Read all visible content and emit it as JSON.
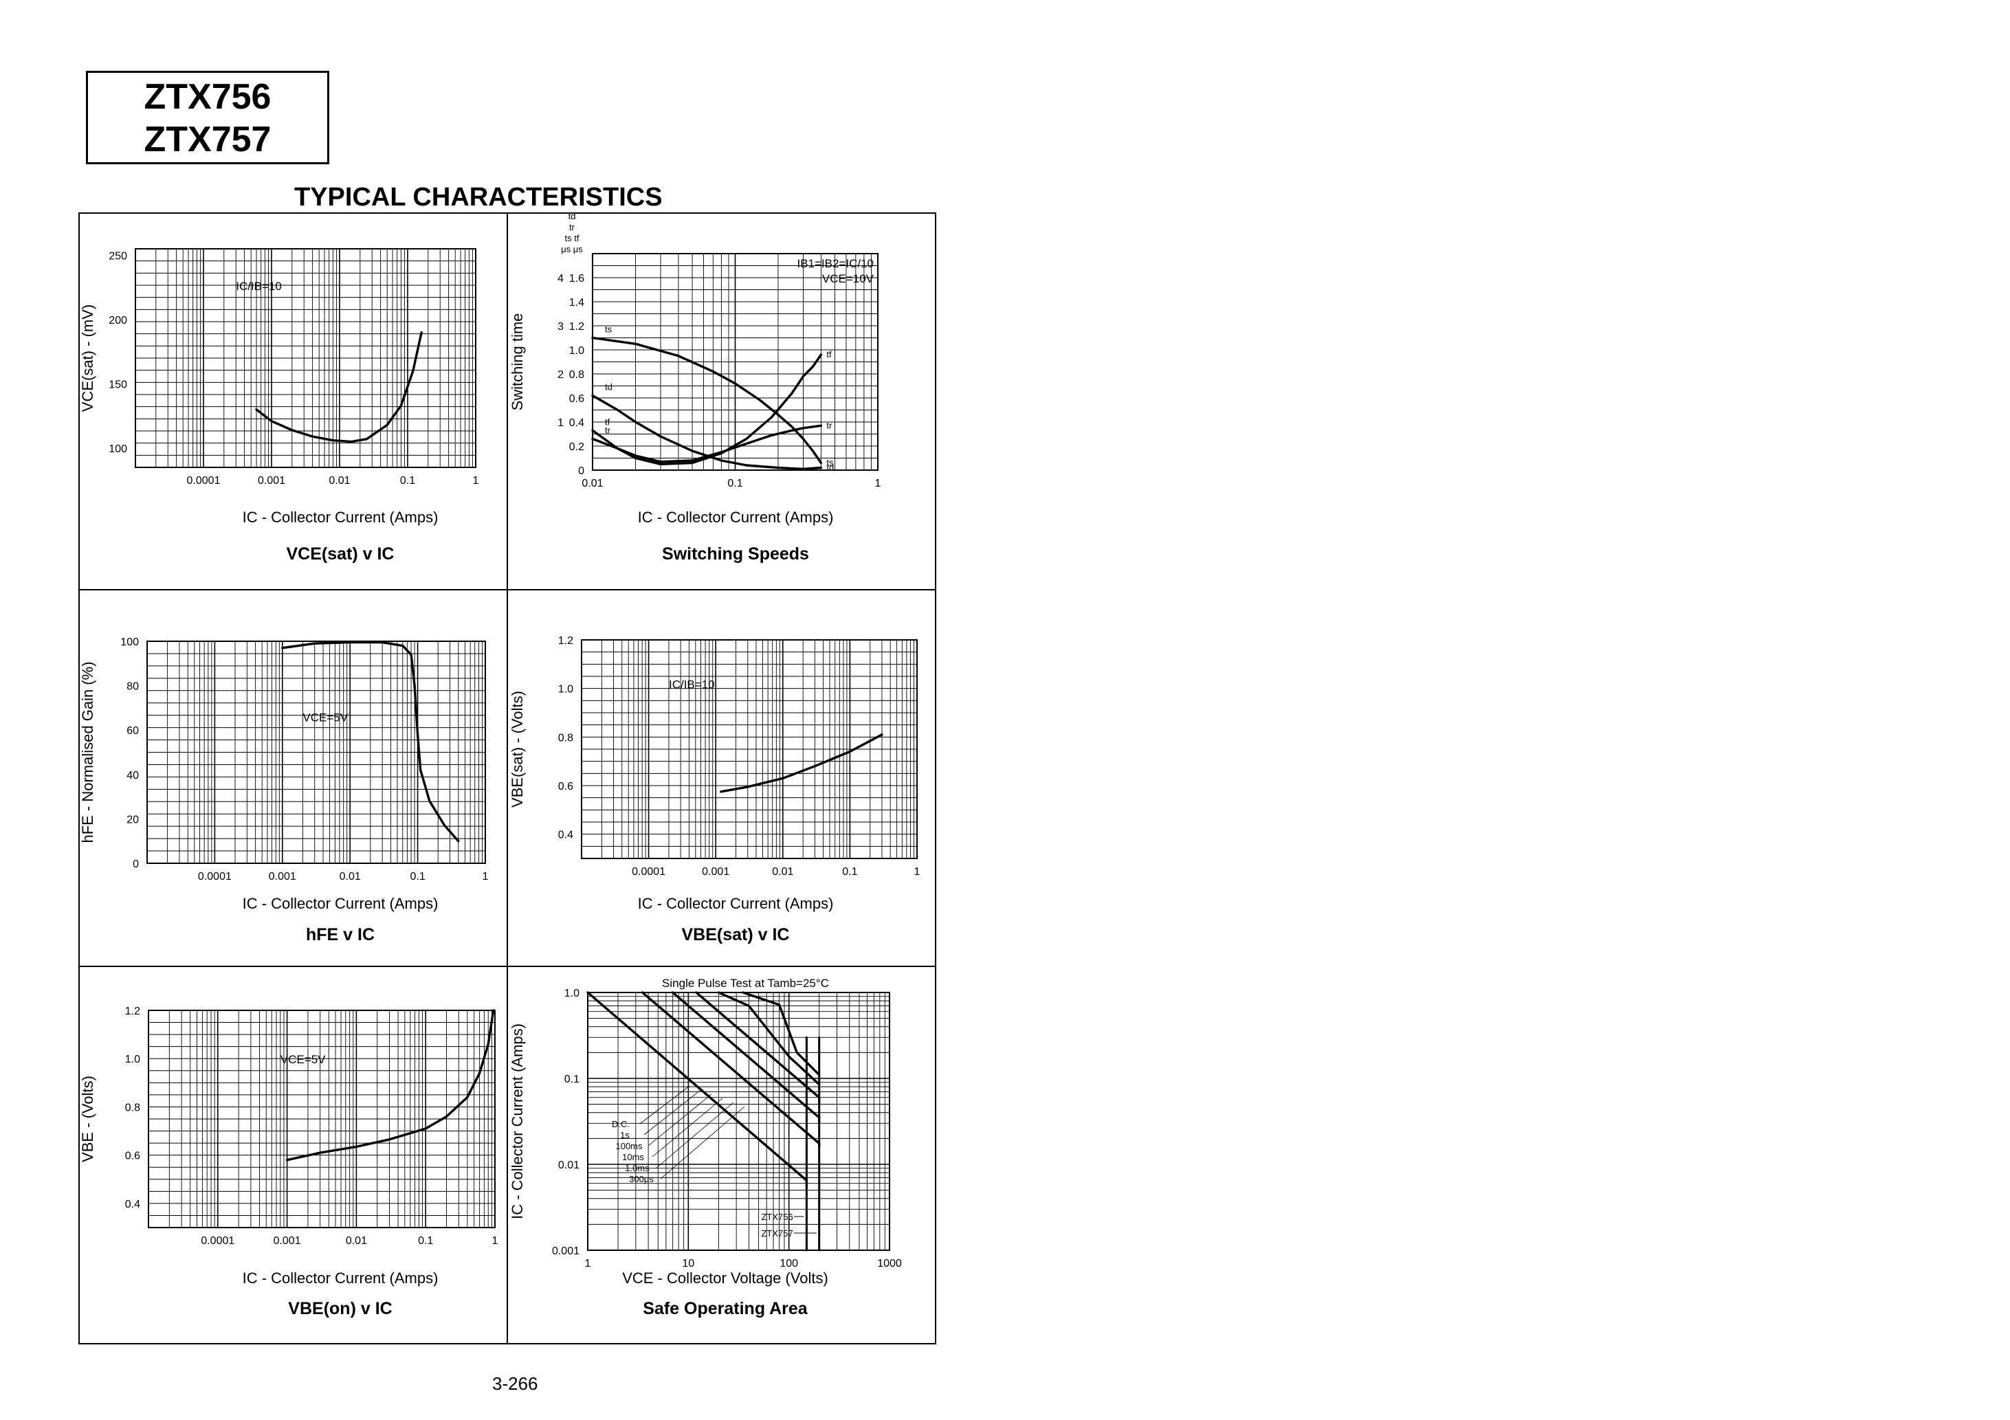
{
  "header": {
    "part_numbers": [
      "ZTX756",
      "ZTX757"
    ],
    "section_title": "TYPICAL CHARACTERISTICS"
  },
  "footer": {
    "page_number": "3-266"
  },
  "chart_data": [
    {
      "id": "vcesat",
      "type": "line",
      "caption": "VCE(sat) v IC",
      "xlabel": "IC - Collector Current (Amps)",
      "ylabel": "VCE(sat) - (mV)",
      "xscale": "log",
      "xlim": [
        1e-05,
        1
      ],
      "ylim": [
        85,
        255
      ],
      "x_ticks": [
        "0.0001",
        "0.001",
        "0.01",
        "0.1",
        "1"
      ],
      "x_tick_values": [
        0.0001,
        0.001,
        0.01,
        0.1,
        1
      ],
      "y_ticks": [
        "100",
        "150",
        "200",
        "250"
      ],
      "y_tick_values": [
        100,
        150,
        200,
        250
      ],
      "annotations": [
        {
          "text": "IC/IB=10",
          "x": 0.0003,
          "y": 223
        }
      ],
      "series": [
        {
          "x": [
            0.0006,
            0.001,
            0.002,
            0.004,
            0.008,
            0.015,
            0.025,
            0.05,
            0.08,
            0.12,
            0.16
          ],
          "y": [
            130,
            121,
            114,
            109,
            106,
            105,
            107,
            118,
            133,
            160,
            190
          ]
        }
      ]
    },
    {
      "id": "switching",
      "type": "line",
      "caption": "Switching Speeds",
      "xlabel": "IC - Collector Current (Amps)",
      "ylabel": "Switching time",
      "xscale": "log",
      "xlim": [
        0.01,
        1
      ],
      "ylim": [
        0,
        1.8
      ],
      "x_ticks": [
        "0.01",
        "0.1",
        "1"
      ],
      "x_tick_values": [
        0.01,
        0.1,
        1
      ],
      "y_ticks": [
        "0",
        "0.2",
        "0.4",
        "0.6",
        "0.8",
        "1.0",
        "1.2",
        "1.4",
        "1.6"
      ],
      "y_tick_values": [
        0,
        0.2,
        0.4,
        0.6,
        0.8,
        1.0,
        1.2,
        1.4,
        1.6
      ],
      "y2_ticks": [
        "1",
        "2",
        "3",
        "4"
      ],
      "y2_tick_values": [
        0.4,
        0.8,
        1.2,
        1.6
      ],
      "y_unit_header": [
        "td",
        "tr",
        "ts  tf",
        "μs  μs"
      ],
      "legend": [
        "IB1=IB2=IC/10",
        "VCE=10V"
      ],
      "series": [
        {
          "name": "ts",
          "x": [
            0.01,
            0.02,
            0.04,
            0.07,
            0.1,
            0.15,
            0.2,
            0.25,
            0.3,
            0.35,
            0.4
          ],
          "y": [
            1.1,
            1.05,
            0.95,
            0.82,
            0.72,
            0.58,
            0.46,
            0.36,
            0.26,
            0.16,
            0.06
          ]
        },
        {
          "name": "td",
          "x": [
            0.01,
            0.015,
            0.02,
            0.03,
            0.05,
            0.08,
            0.12,
            0.2,
            0.3,
            0.4
          ],
          "y": [
            0.62,
            0.5,
            0.4,
            0.28,
            0.16,
            0.08,
            0.04,
            0.02,
            0.01,
            0.02
          ]
        },
        {
          "name": "tf",
          "x": [
            0.01,
            0.015,
            0.02,
            0.03,
            0.05,
            0.08,
            0.12,
            0.18,
            0.25,
            0.3,
            0.35,
            0.4
          ],
          "y": [
            0.33,
            0.18,
            0.1,
            0.05,
            0.06,
            0.14,
            0.26,
            0.44,
            0.64,
            0.78,
            0.86,
            0.96
          ]
        },
        {
          "name": "tr",
          "x": [
            0.01,
            0.015,
            0.02,
            0.03,
            0.05,
            0.08,
            0.12,
            0.18,
            0.25,
            0.3,
            0.4
          ],
          "y": [
            0.26,
            0.18,
            0.12,
            0.07,
            0.08,
            0.15,
            0.22,
            0.29,
            0.33,
            0.35,
            0.37
          ]
        }
      ]
    },
    {
      "id": "hfe",
      "type": "line",
      "caption": "hFE v IC",
      "xlabel": "IC - Collector Current (Amps)",
      "ylabel": "hFE - Normalised Gain (%)",
      "xscale": "log",
      "xlim": [
        1e-05,
        1
      ],
      "ylim": [
        0,
        100
      ],
      "x_ticks": [
        "0.0001",
        "0.001",
        "0.01",
        "0.1",
        "1"
      ],
      "x_tick_values": [
        0.0001,
        0.001,
        0.01,
        0.1,
        1
      ],
      "y_ticks": [
        "0",
        "20",
        "40",
        "60",
        "80",
        "100"
      ],
      "y_tick_values": [
        0,
        20,
        40,
        60,
        80,
        100
      ],
      "annotations": [
        {
          "text": "VCE=5V",
          "x": 0.002,
          "y": 64
        }
      ],
      "series": [
        {
          "x": [
            0.001,
            0.003,
            0.01,
            0.03,
            0.06,
            0.08,
            0.09,
            0.1,
            0.11,
            0.15,
            0.25,
            0.4
          ],
          "y": [
            97,
            99,
            99.5,
            99.5,
            98,
            94,
            80,
            58,
            42,
            28,
            17,
            10
          ]
        }
      ]
    },
    {
      "id": "vbesat",
      "type": "line",
      "caption": "VBE(sat) v IC",
      "xlabel": "IC - Collector Current (Amps)",
      "ylabel": "VBE(sat) - (Volts)",
      "xscale": "log",
      "xlim": [
        1e-05,
        1
      ],
      "ylim": [
        0.3,
        1.2
      ],
      "x_ticks": [
        "0.0001",
        "0.001",
        "0.01",
        "0.1",
        "1"
      ],
      "x_tick_values": [
        0.0001,
        0.001,
        0.01,
        0.1,
        1
      ],
      "y_ticks": [
        "0.4",
        "0.6",
        "0.8",
        "1.0",
        "1.2"
      ],
      "y_tick_values": [
        0.4,
        0.6,
        0.8,
        1.0,
        1.2
      ],
      "annotations": [
        {
          "text": "IC/IB=10",
          "x": 0.0002,
          "y": 1.0
        }
      ],
      "series": [
        {
          "x": [
            0.0012,
            0.003,
            0.01,
            0.03,
            0.1,
            0.3
          ],
          "y": [
            0.575,
            0.595,
            0.63,
            0.68,
            0.74,
            0.81
          ]
        }
      ]
    },
    {
      "id": "vbeon",
      "type": "line",
      "caption": "VBE(on) v IC",
      "xlabel": "IC - Collector Current (Amps)",
      "ylabel": "VBE - (Volts)",
      "xscale": "log",
      "xlim": [
        1e-05,
        1
      ],
      "ylim": [
        0.3,
        1.2
      ],
      "x_ticks": [
        "0.0001",
        "0.001",
        "0.01",
        "0.1",
        "1"
      ],
      "x_tick_values": [
        0.0001,
        0.001,
        0.01,
        0.1,
        1
      ],
      "y_ticks": [
        "0.4",
        "0.6",
        "0.8",
        "1.0",
        "1.2"
      ],
      "y_tick_values": [
        0.4,
        0.6,
        0.8,
        1.0,
        1.2
      ],
      "annotations": [
        {
          "text": "VCE=5V",
          "x": 0.0008,
          "y": 0.98
        }
      ],
      "series": [
        {
          "x": [
            0.001,
            0.003,
            0.01,
            0.03,
            0.1,
            0.2,
            0.4,
            0.6,
            0.8,
            0.95
          ],
          "y": [
            0.58,
            0.61,
            0.635,
            0.665,
            0.71,
            0.76,
            0.84,
            0.94,
            1.06,
            1.2
          ]
        }
      ]
    },
    {
      "id": "soa",
      "type": "line",
      "caption": "Safe Operating Area",
      "title": "Single Pulse Test at Tamb=25°C",
      "xlabel": "VCE - Collector Voltage (Volts)",
      "ylabel": "IC - Collector Current (Amps)",
      "xscale": "log",
      "yscale": "log",
      "xlim": [
        1,
        1000
      ],
      "ylim": [
        0.001,
        1
      ],
      "x_ticks": [
        "1",
        "10",
        "100",
        "1000"
      ],
      "x_tick_values": [
        1,
        10,
        100,
        1000
      ],
      "y_ticks": [
        "0.001",
        "0.01",
        "0.1",
        "1.0"
      ],
      "y_tick_values": [
        0.001,
        0.01,
        0.1,
        1
      ],
      "series": [
        {
          "name": "D.C.",
          "x": [
            1,
            150,
            150
          ],
          "y": [
            1,
            0.0065,
            0.0055
          ]
        },
        {
          "name": "1s",
          "x": [
            3.5,
            200,
            200
          ],
          "y": [
            1,
            0.0175,
            0.0162
          ]
        },
        {
          "name": "100ms",
          "x": [
            7,
            200,
            200
          ],
          "y": [
            1,
            0.035,
            0.031
          ]
        },
        {
          "name": "10ms",
          "x": [
            12,
            200,
            200
          ],
          "y": [
            1,
            0.06,
            0.05
          ]
        },
        {
          "name": "1.0ms",
          "x": [
            20,
            40,
            100,
            200
          ],
          "y": [
            1,
            0.7,
            0.18,
            0.085
          ]
        },
        {
          "name": "300μs",
          "x": [
            35,
            80,
            120,
            200
          ],
          "y": [
            1,
            0.72,
            0.2,
            0.11
          ]
        },
        {
          "name": "ZTX756 limit",
          "x": [
            150,
            150
          ],
          "y": [
            0.3,
            0.001
          ]
        },
        {
          "name": "ZTX757 limit",
          "x": [
            200,
            200
          ],
          "y": [
            0.3,
            0.001
          ]
        }
      ],
      "curve_labels": [
        "D.C.",
        "1s",
        "100ms",
        "10ms",
        "1.0ms",
        "300μs"
      ],
      "device_labels": [
        "ZTX756",
        "ZTX757"
      ]
    }
  ]
}
